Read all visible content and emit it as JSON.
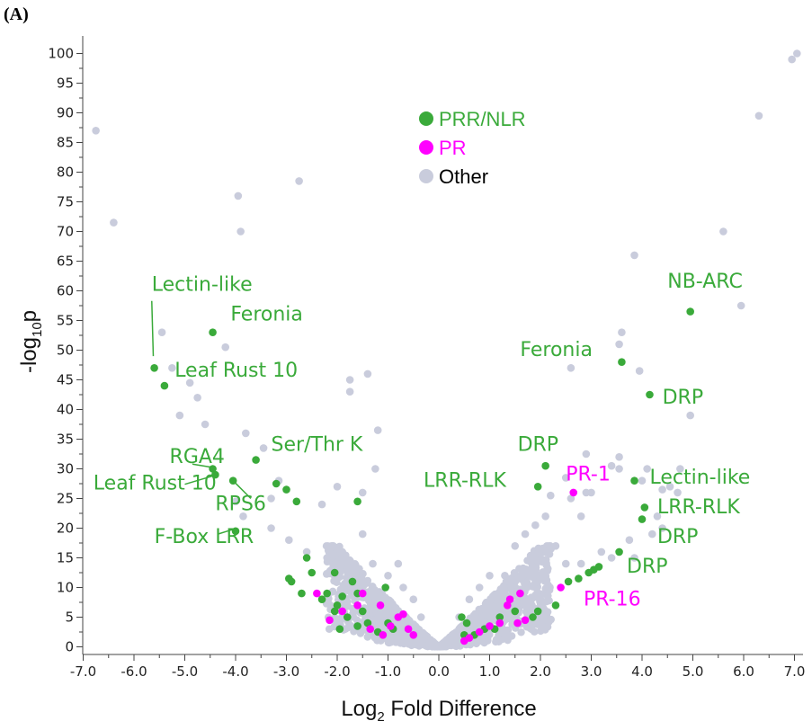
{
  "panel_label": "(A)",
  "chart_data": {
    "type": "scatter",
    "xlabel_main": "Log",
    "xlabel_sub": "2",
    "xlabel_rest": " Fold Difference",
    "ylabel_pre": "-log",
    "ylabel_sub": "10",
    "ylabel_post": "p",
    "xlim": [
      -7.3,
      7.3
    ],
    "ylim": [
      -2,
      102
    ],
    "x_ticks": [
      -7.0,
      -6.0,
      -5.0,
      -4.0,
      -3.0,
      -2.0,
      -1.0,
      0.0,
      1.0,
      2.0,
      3.0,
      4.0,
      5.0,
      6.0,
      7.0
    ],
    "x_tick_labels": [
      "-7.0",
      "-6.0",
      "-5.0",
      "-4.0",
      "-3.0",
      "-2.0",
      "-1.0",
      "0.0",
      "1.0",
      "2.0",
      "3.0",
      "4.0",
      "5.0",
      "6.0",
      "7.0"
    ],
    "y_ticks": [
      0,
      5,
      10,
      15,
      20,
      25,
      30,
      35,
      40,
      45,
      50,
      55,
      60,
      65,
      70,
      75,
      80,
      85,
      90,
      95,
      100
    ],
    "y_tick_labels": [
      "0",
      "5",
      "10",
      "15",
      "20",
      "25",
      "30",
      "35",
      "40",
      "45",
      "50",
      "55",
      "60",
      "65",
      "70",
      "75",
      "80",
      "85",
      "90",
      "95",
      "100"
    ],
    "colors": {
      "PRR/NLR": "#3aaa3a",
      "PR": "#ff00ff",
      "Other": "#c9ccdc"
    },
    "legend": [
      {
        "name": "PRR/NLR",
        "color": "#3aaa3a",
        "text_color": "#3aaa3a"
      },
      {
        "name": "PR",
        "color": "#ff00ff",
        "text_color": "#ff00ff"
      },
      {
        "name": "Other",
        "color": "#c9ccdc",
        "text_color": "#000000"
      }
    ],
    "legend_placement": "top-center",
    "series": [
      {
        "name": "Other",
        "points": [
          [
            -6.75,
            87
          ],
          [
            -6.4,
            71.5
          ],
          [
            -3.95,
            76
          ],
          [
            -3.9,
            70
          ],
          [
            -2.75,
            78.5
          ],
          [
            -5.45,
            53
          ],
          [
            -5.25,
            47
          ],
          [
            -4.9,
            44.5
          ],
          [
            -4.75,
            42
          ],
          [
            -5.1,
            39
          ],
          [
            -4.6,
            37.5
          ],
          [
            -4.2,
            50.5
          ],
          [
            -3.8,
            36
          ],
          [
            -3.45,
            33.5
          ],
          [
            -1.75,
            45
          ],
          [
            -1.75,
            43
          ],
          [
            -1.4,
            46
          ],
          [
            -1.2,
            36.5
          ],
          [
            -1.25,
            30
          ],
          [
            -1.5,
            26
          ],
          [
            -2.0,
            27
          ],
          [
            -2.3,
            24
          ],
          [
            -3.15,
            28
          ],
          [
            -3.3,
            25
          ],
          [
            -4.0,
            24.5
          ],
          [
            -3.85,
            22
          ],
          [
            -3.3,
            20
          ],
          [
            -2.95,
            18
          ],
          [
            -2.6,
            16
          ],
          [
            -2.2,
            15
          ],
          [
            -1.9,
            16
          ],
          [
            -1.5,
            19
          ],
          [
            -1.3,
            14
          ],
          [
            -1.0,
            12
          ],
          [
            -0.8,
            14
          ],
          [
            -0.7,
            10
          ],
          [
            -0.5,
            8
          ],
          [
            -0.35,
            5
          ],
          [
            3.6,
            53
          ],
          [
            3.55,
            51
          ],
          [
            3.95,
            46.5
          ],
          [
            4.95,
            39
          ],
          [
            2.6,
            47
          ],
          [
            3.55,
            32
          ],
          [
            3.55,
            30
          ],
          [
            3.4,
            30.5
          ],
          [
            2.9,
            32.5
          ],
          [
            2.5,
            28.5
          ],
          [
            2.6,
            25
          ],
          [
            2.9,
            26
          ],
          [
            3.0,
            26
          ],
          [
            2.8,
            22
          ],
          [
            2.2,
            25.5
          ],
          [
            2.1,
            22
          ],
          [
            1.9,
            20.5
          ],
          [
            1.7,
            19
          ],
          [
            1.5,
            17
          ],
          [
            2.3,
            17
          ],
          [
            2.5,
            14
          ],
          [
            2.8,
            14
          ],
          [
            3.2,
            16
          ],
          [
            4.0,
            28
          ],
          [
            4.1,
            30
          ],
          [
            4.4,
            26.5
          ],
          [
            4.55,
            27
          ],
          [
            4.75,
            30
          ],
          [
            4.7,
            26
          ],
          [
            4.3,
            22
          ],
          [
            4.2,
            19
          ],
          [
            4.4,
            20
          ],
          [
            3.75,
            18
          ],
          [
            3.85,
            15
          ],
          [
            3.4,
            15
          ],
          [
            1.3,
            12
          ],
          [
            1.0,
            12
          ],
          [
            0.8,
            10
          ],
          [
            0.6,
            8
          ],
          [
            0.4,
            5
          ],
          [
            3.85,
            66
          ],
          [
            5.6,
            70
          ],
          [
            5.95,
            57.5
          ],
          [
            6.3,
            89.5
          ],
          [
            6.95,
            99
          ],
          [
            7.05,
            100
          ]
        ]
      },
      {
        "name": "PRR/NLR",
        "points": [
          [
            -5.6,
            47
          ],
          [
            -5.4,
            44
          ],
          [
            -4.45,
            53
          ],
          [
            -4.45,
            30
          ],
          [
            -4.4,
            29
          ],
          [
            -4.05,
            28
          ],
          [
            -3.6,
            31.5
          ],
          [
            -3.2,
            27.5
          ],
          [
            -3.0,
            26.5
          ],
          [
            -2.8,
            24.5
          ],
          [
            -4.0,
            19.5
          ],
          [
            -1.6,
            24.5
          ],
          [
            -2.6,
            15
          ],
          [
            -2.5,
            12.5
          ],
          [
            -2.05,
            12.5
          ],
          [
            -2.2,
            9
          ],
          [
            -1.7,
            11
          ],
          [
            -1.6,
            9
          ],
          [
            -1.9,
            8.5
          ],
          [
            -2.0,
            7
          ],
          [
            -2.05,
            6
          ],
          [
            -1.8,
            5
          ],
          [
            -1.5,
            6
          ],
          [
            -1.4,
            4
          ],
          [
            -1.0,
            4
          ],
          [
            -0.9,
            3
          ],
          [
            -1.2,
            2.5
          ],
          [
            -1.6,
            3.5
          ],
          [
            -1.95,
            3
          ],
          [
            -2.3,
            8
          ],
          [
            -2.7,
            9
          ],
          [
            -2.9,
            11
          ],
          [
            -2.95,
            11.5
          ],
          [
            -1.05,
            10
          ],
          [
            4.95,
            56.5
          ],
          [
            3.6,
            48
          ],
          [
            4.15,
            42.5
          ],
          [
            2.1,
            30.5
          ],
          [
            1.95,
            27
          ],
          [
            3.85,
            28
          ],
          [
            4.05,
            23.5
          ],
          [
            4.0,
            21.5
          ],
          [
            3.55,
            16
          ],
          [
            3.15,
            13.5
          ],
          [
            2.95,
            12.5
          ],
          [
            2.75,
            11.5
          ],
          [
            3.05,
            13
          ],
          [
            2.55,
            11
          ],
          [
            2.3,
            7
          ],
          [
            1.95,
            6
          ],
          [
            1.85,
            5
          ],
          [
            1.5,
            6
          ],
          [
            1.2,
            5
          ],
          [
            1.1,
            3
          ],
          [
            0.9,
            3
          ],
          [
            0.7,
            2
          ],
          [
            0.5,
            2
          ],
          [
            0.45,
            5
          ],
          [
            0.55,
            4
          ]
        ]
      },
      {
        "name": "PR",
        "points": [
          [
            -2.4,
            9
          ],
          [
            -2.15,
            4.5
          ],
          [
            -1.9,
            6
          ],
          [
            -1.6,
            7
          ],
          [
            -1.5,
            9
          ],
          [
            -1.35,
            3
          ],
          [
            -1.1,
            2
          ],
          [
            -0.8,
            5
          ],
          [
            -0.7,
            5.5
          ],
          [
            -0.6,
            3
          ],
          [
            -0.5,
            2
          ],
          [
            -0.95,
            3.5
          ],
          [
            -1.15,
            7
          ],
          [
            2.65,
            26
          ],
          [
            2.4,
            10
          ],
          [
            1.6,
            9
          ],
          [
            1.35,
            7
          ],
          [
            1.2,
            4
          ],
          [
            1.0,
            3.5
          ],
          [
            0.8,
            2.5
          ],
          [
            0.6,
            1.5
          ],
          [
            0.5,
            1
          ],
          [
            1.55,
            4
          ],
          [
            1.7,
            4.5
          ],
          [
            1.4,
            8
          ]
        ]
      }
    ],
    "dense_cloud": true,
    "annotations": [
      {
        "text": "Lectin-like",
        "color": "#3aaa3a",
        "pt": [
          -5.6,
          47
        ],
        "label_at": [
          -5.65,
          60
        ]
      },
      {
        "text": "Feronia",
        "color": "#3aaa3a",
        "pt": [
          -4.45,
          53
        ],
        "label_at": [
          -4.1,
          55
        ]
      },
      {
        "text": "Leaf Rust 10",
        "color": "#3aaa3a",
        "pt": [
          -5.4,
          44
        ],
        "label_at": [
          -5.2,
          45.5
        ]
      },
      {
        "text": "Ser/Thr K",
        "color": "#3aaa3a",
        "pt": [
          -3.6,
          31.5
        ],
        "label_at": [
          -3.3,
          33
        ]
      },
      {
        "text": "RGA4",
        "color": "#3aaa3a",
        "pt": [
          -4.45,
          30
        ],
        "label_at": [
          -5.3,
          31
        ]
      },
      {
        "text": "Leaf Rust 10",
        "color": "#3aaa3a",
        "pt": [
          -4.4,
          29
        ],
        "label_at": [
          -6.8,
          26.5
        ]
      },
      {
        "text": "RPS6",
        "color": "#3aaa3a",
        "pt": [
          -4.05,
          28
        ],
        "label_at": [
          -4.4,
          23
        ]
      },
      {
        "text": "F-Box LRR",
        "color": "#3aaa3a",
        "pt": [
          -4.0,
          19.5
        ],
        "label_at": [
          -5.6,
          17.5
        ]
      },
      {
        "text": "NB-ARC",
        "color": "#3aaa3a",
        "pt": [
          4.95,
          56.5
        ],
        "label_at": [
          4.5,
          60.5
        ]
      },
      {
        "text": "Feronia",
        "color": "#3aaa3a",
        "pt": [
          3.6,
          48
        ],
        "label_at": [
          1.6,
          49
        ]
      },
      {
        "text": "DRP",
        "color": "#3aaa3a",
        "pt": [
          4.15,
          42.5
        ],
        "label_at": [
          4.4,
          41
        ]
      },
      {
        "text": "DRP",
        "color": "#3aaa3a",
        "pt": [
          2.1,
          30.5
        ],
        "label_at": [
          1.55,
          33
        ]
      },
      {
        "text": "LRR-RLK",
        "color": "#3aaa3a",
        "pt": [
          1.95,
          27
        ],
        "label_at": [
          -0.3,
          27
        ]
      },
      {
        "text": "PR-1",
        "color": "#ff00ff",
        "pt": [
          2.65,
          26
        ],
        "label_at": [
          2.5,
          28
        ]
      },
      {
        "text": "Lectin-like",
        "color": "#3aaa3a",
        "pt": [
          3.85,
          28
        ],
        "label_at": [
          4.15,
          27.5
        ]
      },
      {
        "text": "LRR-RLK",
        "color": "#3aaa3a",
        "pt": [
          4.05,
          23.5
        ],
        "label_at": [
          4.3,
          22.5
        ]
      },
      {
        "text": "DRP",
        "color": "#3aaa3a",
        "pt": [
          4.0,
          21.5
        ],
        "label_at": [
          4.3,
          17.5
        ]
      },
      {
        "text": "DRP",
        "color": "#3aaa3a",
        "pt": [
          3.55,
          16
        ],
        "label_at": [
          3.7,
          12.5
        ]
      },
      {
        "text": "PR-16",
        "color": "#ff00ff",
        "pt": [
          2.4,
          10
        ],
        "label_at": [
          2.85,
          7
        ]
      }
    ],
    "leader_lines": [
      "Lectin-like",
      "RGA4",
      "Leaf Rust 10",
      "RPS6",
      "F-Box LRR"
    ]
  }
}
